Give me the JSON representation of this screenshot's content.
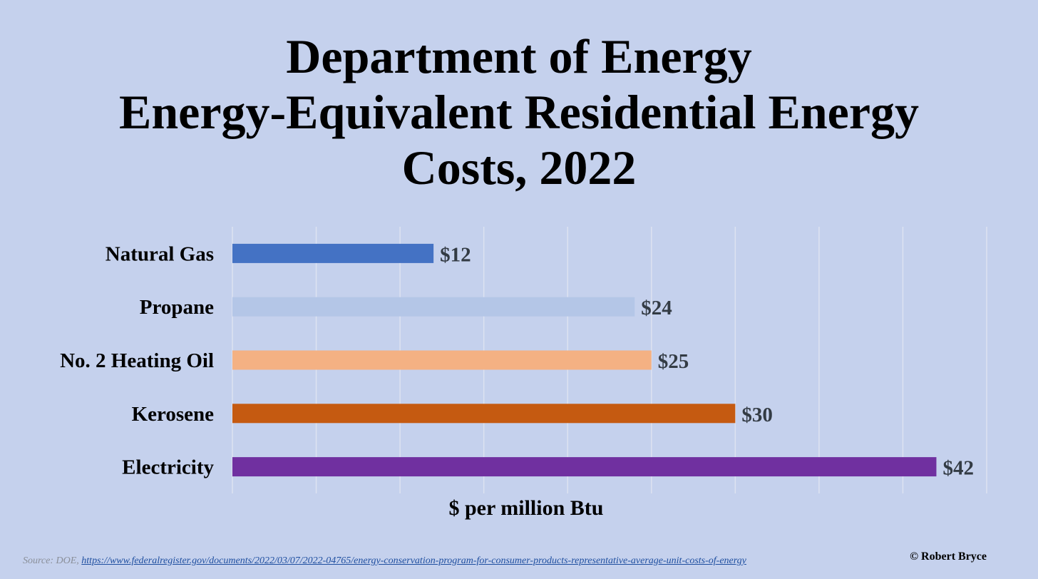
{
  "chart_data": {
    "type": "bar",
    "orientation": "horizontal",
    "title": "Department of Energy Energy-Equivalent Residential Energy Costs, 2022",
    "title_lines": [
      "Department of Energy",
      "Energy-Equivalent Residential Energy",
      "Costs, 2022"
    ],
    "xlabel": "$ per million Btu",
    "ylabel": "",
    "categories": [
      "Natural Gas",
      "Propane",
      "No. 2 Heating Oil",
      "Kerosene",
      "Electricity"
    ],
    "values": [
      12,
      24,
      25,
      30,
      42
    ],
    "data_labels": [
      "$12",
      "$24",
      "$25",
      "$30",
      "$42"
    ],
    "bar_colors": [
      "#4472c4",
      "#b4c6e7",
      "#f4b183",
      "#c55a11",
      "#7030a0"
    ],
    "xlim": [
      0,
      45
    ],
    "x_gridlines": [
      0,
      5,
      10,
      15,
      20,
      25,
      30,
      35,
      40,
      45
    ],
    "grid": true,
    "legend": "none"
  },
  "footer": {
    "source_prefix": "Source: DOE, ",
    "source_url": "https://www.federalregister.gov/documents/2022/03/07/2022-04765/energy-conservation-program-for-consumer-products-representative-average-unit-costs-of-energy",
    "copyright": "© Robert Bryce"
  },
  "colors": {
    "background": "#c5d1ed",
    "gridline": "#dde3f1",
    "data_label": "#333b44"
  }
}
